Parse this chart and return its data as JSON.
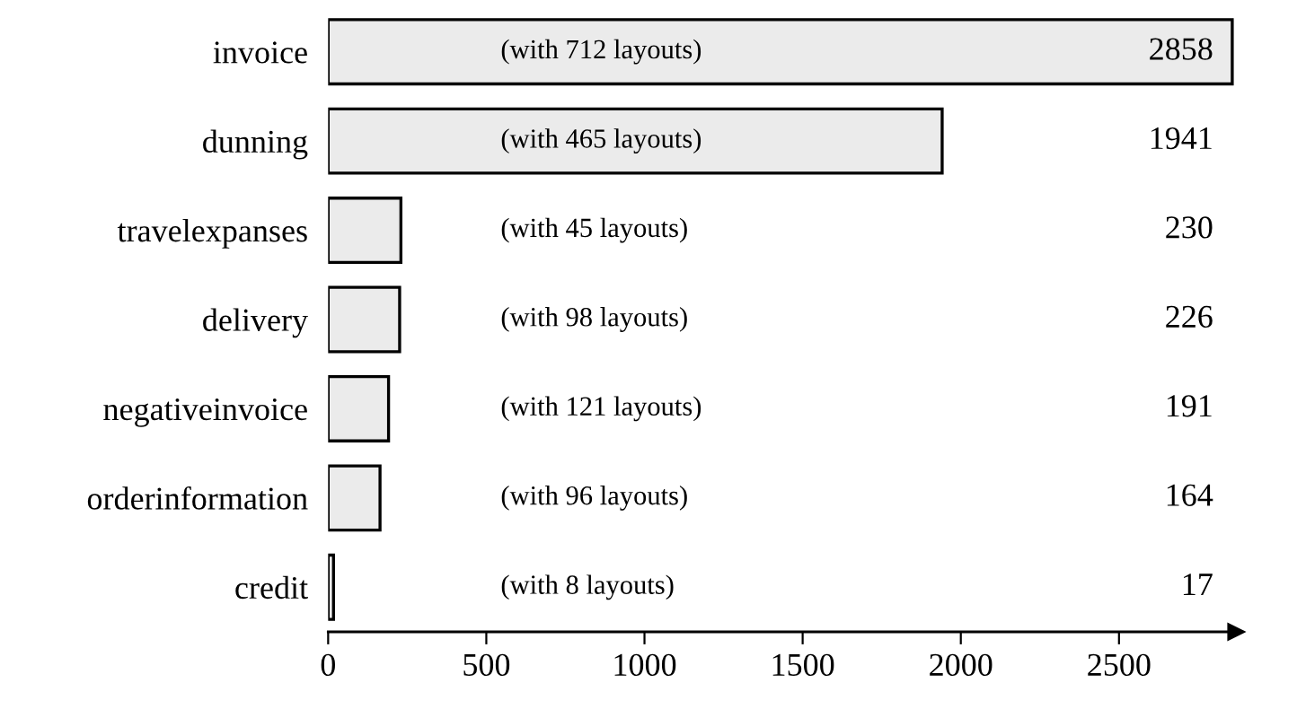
{
  "chart_data": {
    "type": "bar",
    "orientation": "horizontal",
    "categories": [
      "invoice",
      "dunning",
      "travelexpanses",
      "delivery",
      "negativeinvoice",
      "orderinformation",
      "credit"
    ],
    "values": [
      2858,
      1941,
      230,
      226,
      191,
      164,
      17
    ],
    "color": "#ebebeb",
    "data_labels": true,
    "xlim": [
      0,
      2870
    ],
    "xticks": [
      0,
      500,
      1000,
      1500,
      2000,
      2500
    ],
    "grid": false,
    "annotations": [
      "(with 712 layouts)",
      "(with 465 layouts)",
      "(with 45 layouts)",
      "(with 98 layouts)",
      "(with 121 layouts)",
      "(with 96 layouts)",
      "(with 8 layouts)"
    ]
  }
}
